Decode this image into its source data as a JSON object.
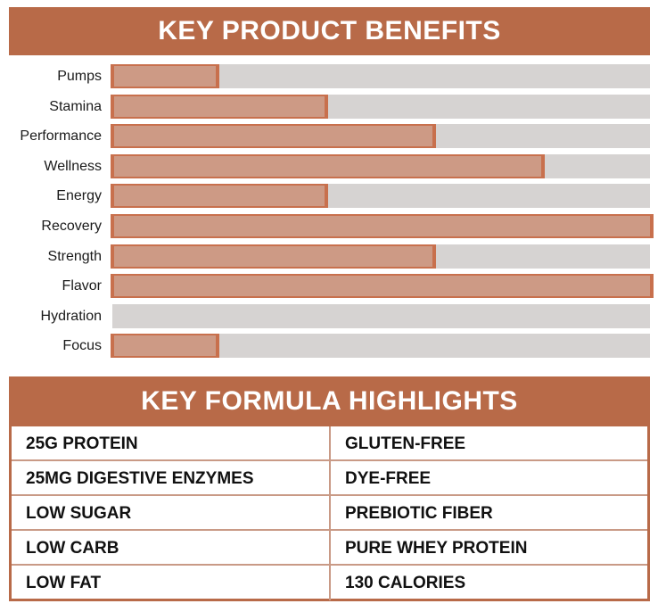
{
  "benefits": {
    "title": "KEY PRODUCT BENEFITS",
    "fill_color": "#cd9a85",
    "edge_color": "#c8704d",
    "track_color": "#d6d3d2",
    "header_color": "#b86a48"
  },
  "formula": {
    "title": "KEY FORMULA HIGHLIGHTS",
    "rows": [
      [
        "25G PROTEIN",
        "GLUTEN-FREE"
      ],
      [
        "25MG DIGESTIVE ENZYMES",
        "DYE-FREE"
      ],
      [
        "LOW SUGAR",
        "PREBIOTIC FIBER"
      ],
      [
        "LOW CARB",
        "PURE WHEY PROTEIN"
      ],
      [
        "LOW FAT",
        "130 CALORIES"
      ]
    ]
  },
  "chart_data": {
    "type": "bar",
    "orientation": "horizontal",
    "title": "KEY PRODUCT BENEFITS",
    "categories": [
      "Pumps",
      "Stamina",
      "Performance",
      "Wellness",
      "Energy",
      "Recovery",
      "Strength",
      "Flavor",
      "Hydration",
      "Focus"
    ],
    "values": [
      1,
      2,
      3,
      4,
      2,
      5,
      3,
      5,
      0,
      1
    ],
    "xlabel": "",
    "ylabel": "",
    "xlim": [
      0,
      5
    ],
    "grid": false,
    "legend": null
  }
}
